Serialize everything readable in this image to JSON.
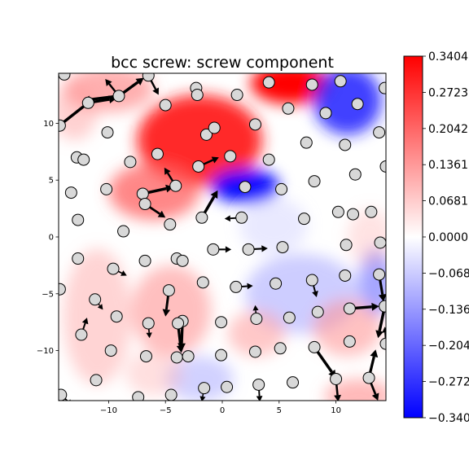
{
  "chart_data": {
    "type": "heatmap",
    "title": "bcc screw: screw component",
    "xlabel": "",
    "ylabel": "",
    "xlim": [
      -14.4,
      14.4
    ],
    "ylim": [
      -14.4,
      14.4
    ],
    "x_ticks": [
      -10,
      -5,
      0,
      5,
      10
    ],
    "y_ticks": [
      -10,
      -5,
      0,
      5,
      10
    ],
    "x_tick_labels": [
      "−10",
      "−5",
      "0",
      "5",
      "10"
    ],
    "y_tick_labels": [
      "−10",
      "−5",
      "0",
      "5",
      "10"
    ],
    "grid": false,
    "colormap": "bwr",
    "colorbar": {
      "range": [
        -0.3404,
        0.3404
      ],
      "ticks": [
        0.3404,
        0.2723,
        0.2042,
        0.1361,
        0.0681,
        0.0,
        -0.0681,
        -0.1361,
        -0.2042,
        -0.2723,
        -0.3404
      ],
      "tick_labels": [
        "0.3404",
        "0.2723",
        "0.2042",
        "0.1361",
        "0.0681",
        "0.0000",
        "−0.0681",
        "−0.1361",
        "−0.2042",
        "−0.2723",
        "−0.3404"
      ]
    },
    "atoms": [
      [
        -13.9,
        14.3
      ],
      [
        -11.8,
        11.8
      ],
      [
        -9.1,
        12.4
      ],
      [
        -6.5,
        14.2
      ],
      [
        -2.3,
        13.1
      ],
      [
        -2.2,
        12.5
      ],
      [
        1.3,
        12.5
      ],
      [
        4.1,
        13.6
      ],
      [
        7.9,
        13.4
      ],
      [
        10.4,
        13.7
      ],
      [
        14.3,
        13.1
      ],
      [
        -14.3,
        9.8
      ],
      [
        -10.1,
        9.2
      ],
      [
        -5.0,
        11.6
      ],
      [
        -1.4,
        9.0
      ],
      [
        -0.7,
        9.6
      ],
      [
        2.9,
        9.9
      ],
      [
        5.8,
        11.3
      ],
      [
        9.1,
        10.9
      ],
      [
        11.9,
        11.7
      ],
      [
        13.8,
        9.2
      ],
      [
        -12.8,
        7.0
      ],
      [
        -12.2,
        6.8
      ],
      [
        -8.1,
        6.6
      ],
      [
        -5.7,
        7.3
      ],
      [
        -2.1,
        6.2
      ],
      [
        0.7,
        7.1
      ],
      [
        4.1,
        6.8
      ],
      [
        7.4,
        8.3
      ],
      [
        10.8,
        8.1
      ],
      [
        11.7,
        5.5
      ],
      [
        14.4,
        6.2
      ],
      [
        -13.3,
        3.9
      ],
      [
        -10.2,
        4.2
      ],
      [
        -7.0,
        3.8
      ],
      [
        -6.8,
        2.9
      ],
      [
        -4.1,
        4.5
      ],
      [
        2.0,
        4.4
      ],
      [
        5.2,
        4.2
      ],
      [
        8.1,
        4.9
      ],
      [
        11.5,
        2.0
      ],
      [
        13.1,
        2.2
      ],
      [
        -12.7,
        1.5
      ],
      [
        -8.7,
        0.5
      ],
      [
        -4.6,
        1.1
      ],
      [
        -1.8,
        1.7
      ],
      [
        1.7,
        1.7
      ],
      [
        7.2,
        1.6
      ],
      [
        10.2,
        2.2
      ],
      [
        -0.8,
        -1.1
      ],
      [
        2.3,
        -1.1
      ],
      [
        5.3,
        -0.9
      ],
      [
        10.9,
        -0.7
      ],
      [
        13.9,
        -0.5
      ],
      [
        -12.7,
        -1.9
      ],
      [
        -9.6,
        -2.8
      ],
      [
        -6.8,
        -2.1
      ],
      [
        -4.0,
        -1.9
      ],
      [
        -3.5,
        -2.1
      ],
      [
        -1.7,
        -4.0
      ],
      [
        1.2,
        -4.4
      ],
      [
        4.7,
        -4.1
      ],
      [
        7.9,
        -3.8
      ],
      [
        10.8,
        -3.4
      ],
      [
        13.8,
        -3.3
      ],
      [
        -14.3,
        -4.6
      ],
      [
        -11.2,
        -5.5
      ],
      [
        -4.7,
        -4.7
      ],
      [
        -9.3,
        -7.0
      ],
      [
        -6.5,
        -7.6
      ],
      [
        -3.5,
        -7.4
      ],
      [
        -3.9,
        -7.6
      ],
      [
        -0.1,
        -7.5
      ],
      [
        3.0,
        -7.2
      ],
      [
        5.9,
        -7.1
      ],
      [
        8.4,
        -6.6
      ],
      [
        11.2,
        -6.3
      ],
      [
        14.3,
        -6.1
      ],
      [
        -12.4,
        -8.6
      ],
      [
        -9.8,
        -10.0
      ],
      [
        -6.7,
        -10.5
      ],
      [
        -4.0,
        -10.6
      ],
      [
        -3.0,
        -10.5
      ],
      [
        -0.1,
        -10.4
      ],
      [
        2.9,
        -10.1
      ],
      [
        5.1,
        -9.8
      ],
      [
        8.1,
        -9.7
      ],
      [
        11.2,
        -9.2
      ],
      [
        14.4,
        -9.4
      ],
      [
        -11.1,
        -12.6
      ],
      [
        -7.4,
        -14.1
      ],
      [
        -4.5,
        -13.9
      ],
      [
        -1.6,
        -13.3
      ],
      [
        0.4,
        -13.2
      ],
      [
        3.2,
        -13.0
      ],
      [
        6.2,
        -12.8
      ],
      [
        10.0,
        -12.5
      ],
      [
        12.9,
        -12.4
      ],
      [
        -14.2,
        -13.9
      ]
    ],
    "arrows": [
      [
        -11.8,
        11.8,
        2.5,
        0.4
      ],
      [
        -9.1,
        12.4,
        2.2,
        1.6
      ],
      [
        -9.1,
        12.4,
        -3.2,
        -0.4
      ],
      [
        -11.8,
        11.8,
        -2.8,
        -2.2
      ],
      [
        -6.5,
        14.2,
        0.9,
        -1.7
      ],
      [
        -6.5,
        14.2,
        -1.6,
        1.2
      ],
      [
        -9.1,
        12.4,
        -1.2,
        1.5
      ],
      [
        -7.0,
        3.8,
        2.7,
        0.6
      ],
      [
        -4.1,
        4.5,
        -1.0,
        1.6
      ],
      [
        -6.8,
        2.9,
        1.8,
        -1.2
      ],
      [
        -2.1,
        6.2,
        1.8,
        0.8
      ],
      [
        -1.8,
        1.7,
        1.4,
        2.4
      ],
      [
        1.7,
        1.7,
        -1.5,
        -0.1
      ],
      [
        2.3,
        -1.1,
        1.7,
        0.1
      ],
      [
        1.2,
        -4.4,
        1.5,
        0.1
      ],
      [
        -0.8,
        -1.1,
        1.6,
        0.0
      ],
      [
        7.9,
        -3.8,
        0.4,
        -1.5
      ],
      [
        13.9,
        -0.5,
        0.5,
        0.1
      ],
      [
        13.8,
        -3.3,
        0.4,
        -2.4
      ],
      [
        11.2,
        -6.3,
        2.6,
        0.2
      ],
      [
        14.3,
        -6.1,
        -0.6,
        -2.8
      ],
      [
        14.4,
        -9.4,
        -0.1,
        1.5
      ],
      [
        -3.9,
        -7.6,
        0.3,
        -2.6
      ],
      [
        -3.5,
        -7.4,
        -0.1,
        -2.6
      ],
      [
        -4.7,
        -4.7,
        -0.3,
        -2.3
      ],
      [
        8.1,
        -9.7,
        1.9,
        -2.7
      ],
      [
        12.9,
        -12.4,
        0.6,
        2.5
      ],
      [
        10.0,
        -12.5,
        0.2,
        -2.0
      ],
      [
        12.9,
        -12.4,
        0.8,
        -2.0
      ],
      [
        -12.4,
        -8.6,
        0.5,
        1.5
      ],
      [
        -14.2,
        -13.9,
        1.0,
        -0.9
      ],
      [
        -11.2,
        -5.5,
        0.7,
        -0.9
      ],
      [
        3.0,
        -7.2,
        -0.1,
        1.2
      ],
      [
        -1.6,
        -13.3,
        -0.2,
        -1.2
      ],
      [
        3.2,
        -13.0,
        0.1,
        -1.5
      ],
      [
        -9.6,
        -2.8,
        1.2,
        -0.6
      ],
      [
        -6.5,
        -7.6,
        0.1,
        -1.3
      ]
    ]
  }
}
